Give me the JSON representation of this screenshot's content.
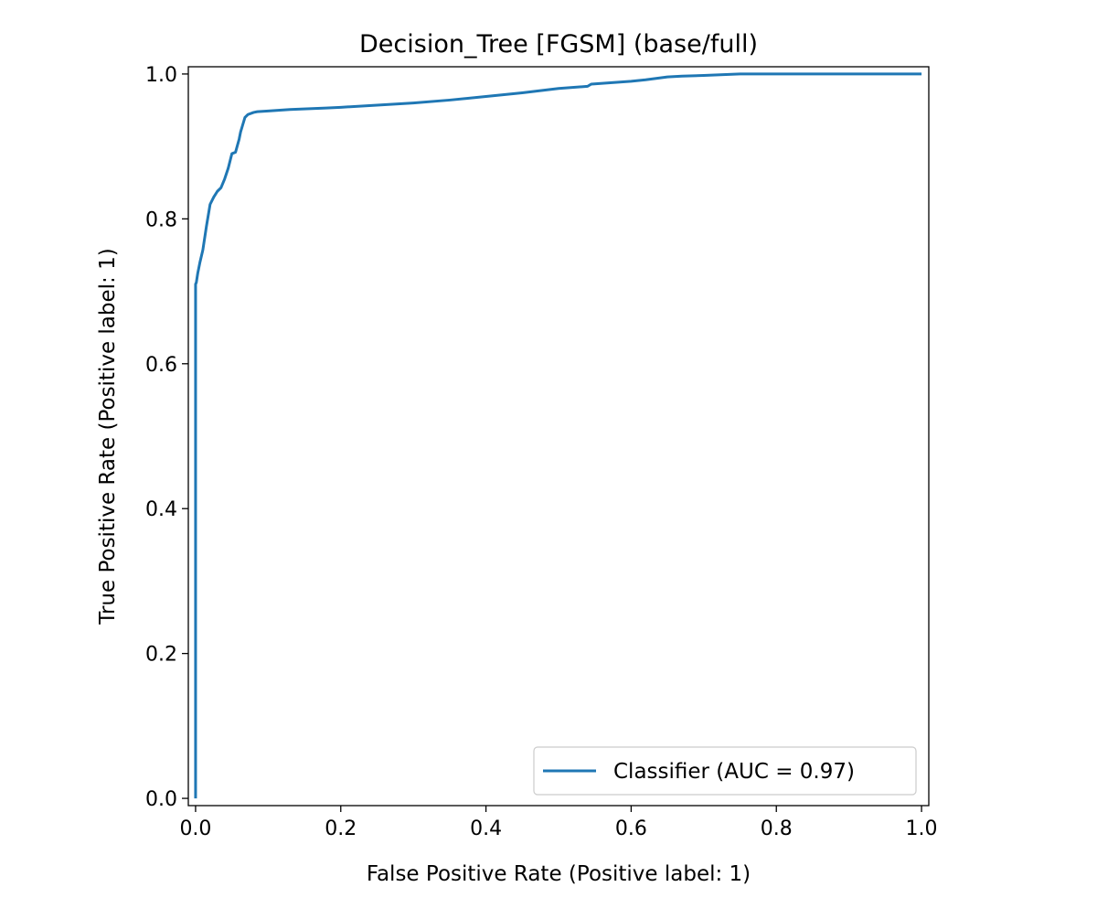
{
  "chart_data": {
    "type": "line",
    "title": "Decision_Tree [FGSM] (base/full)",
    "xlabel": "False Positive Rate (Positive label: 1)",
    "ylabel": "True Positive Rate (Positive label: 1)",
    "xlim": [
      -0.01,
      1.01
    ],
    "ylim": [
      -0.01,
      1.01
    ],
    "xticks": [
      0.0,
      0.2,
      0.4,
      0.6,
      0.8,
      1.0
    ],
    "xtick_labels": [
      "0.0",
      "0.2",
      "0.4",
      "0.6",
      "0.8",
      "1.0"
    ],
    "yticks": [
      0.0,
      0.2,
      0.4,
      0.6,
      0.8,
      1.0
    ],
    "ytick_labels": [
      "0.0",
      "0.2",
      "0.4",
      "0.6",
      "0.8",
      "1.0"
    ],
    "grid": false,
    "legend_position": "lower-right",
    "series": [
      {
        "name": "Classifier (AUC = 0.97)",
        "color": "#1f77b4",
        "x": [
          0.0,
          0.0,
          0.001,
          0.003,
          0.006,
          0.01,
          0.015,
          0.02,
          0.025,
          0.03,
          0.035,
          0.04,
          0.045,
          0.05,
          0.055,
          0.06,
          0.062,
          0.065,
          0.068,
          0.072,
          0.08,
          0.085,
          0.1,
          0.13,
          0.18,
          0.2,
          0.25,
          0.3,
          0.35,
          0.4,
          0.45,
          0.5,
          0.54,
          0.545,
          0.6,
          0.62,
          0.65,
          0.67,
          0.7,
          0.75,
          0.8,
          1.0
        ],
        "y": [
          0.0,
          0.71,
          0.712,
          0.725,
          0.74,
          0.757,
          0.79,
          0.82,
          0.83,
          0.838,
          0.843,
          0.855,
          0.87,
          0.89,
          0.892,
          0.91,
          0.92,
          0.93,
          0.94,
          0.944,
          0.947,
          0.948,
          0.949,
          0.951,
          0.953,
          0.954,
          0.957,
          0.96,
          0.964,
          0.969,
          0.974,
          0.98,
          0.983,
          0.986,
          0.99,
          0.992,
          0.996,
          0.997,
          0.998,
          1.0,
          1.0,
          1.0
        ]
      }
    ]
  }
}
